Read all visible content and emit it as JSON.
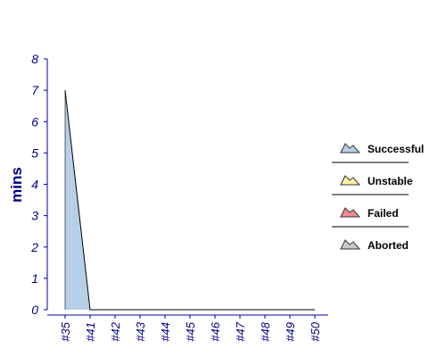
{
  "chart_data": {
    "type": "area",
    "title": "",
    "xlabel": "",
    "ylabel": "mins",
    "ylim": [
      0,
      8
    ],
    "yticks": [
      "0",
      "1",
      "2",
      "3",
      "4",
      "5",
      "6",
      "7",
      "8"
    ],
    "categories": [
      "#35",
      "#41",
      "#42",
      "#43",
      "#44",
      "#45",
      "#46",
      "#47",
      "#48",
      "#49",
      "#50"
    ],
    "series": [
      {
        "name": "Successful",
        "values": [
          7,
          0,
          0,
          0,
          0,
          0,
          0,
          0,
          0,
          0,
          0
        ]
      },
      {
        "name": "Unstable",
        "values": [
          0,
          0,
          0,
          0,
          0,
          0,
          0,
          0,
          0,
          0,
          0
        ]
      },
      {
        "name": "Failed",
        "values": [
          0,
          0,
          0,
          0,
          0,
          0,
          0,
          0,
          0,
          0,
          0
        ]
      },
      {
        "name": "Aborted",
        "values": [
          0,
          0,
          0,
          0,
          0,
          0,
          0,
          0,
          0,
          0,
          0
        ]
      }
    ],
    "grid": false,
    "legend_position": "right"
  },
  "colors": {
    "successful": "#b8cfe8",
    "unstable": "#fff3a0",
    "failed": "#f08c8c",
    "aborted": "#c8c8c8",
    "axis": "#0000aa",
    "label": "#000080"
  }
}
